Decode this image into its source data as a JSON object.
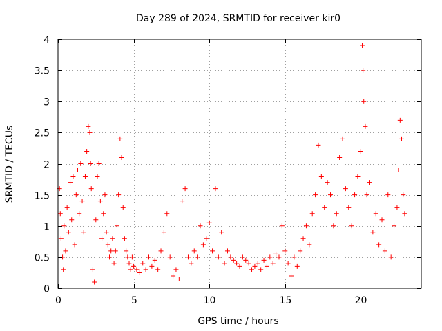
{
  "chart_data": {
    "type": "scatter",
    "title": "Day 289 of 2024, SRMTID for receiver kir0",
    "xlabel": "GPS time / hours",
    "ylabel": "SRMTID / TECUs",
    "xlim": [
      0,
      24
    ],
    "ylim": [
      0,
      4
    ],
    "xticks": [
      0,
      5,
      10,
      15,
      20
    ],
    "xtick_labels": [
      "0",
      "5",
      "10",
      "15",
      "20"
    ],
    "yticks": [
      0,
      0.5,
      1,
      1.5,
      2,
      2.5,
      3,
      3.5,
      4
    ],
    "ytick_labels": [
      "0",
      "0.5",
      "1",
      "1.5",
      "2",
      "2.5",
      "3",
      "3.5",
      "4"
    ],
    "grid": true,
    "marker": "+",
    "series": [
      {
        "name": "SRMTID",
        "color": "#ff0000",
        "x": [
          0.0,
          0.1,
          0.15,
          0.2,
          0.3,
          0.35,
          0.4,
          0.5,
          0.6,
          0.7,
          0.8,
          0.9,
          1.0,
          1.1,
          1.2,
          1.3,
          1.4,
          1.5,
          1.6,
          1.7,
          1.8,
          1.9,
          2.0,
          2.1,
          2.15,
          2.2,
          2.3,
          2.4,
          2.5,
          2.6,
          2.7,
          2.8,
          2.9,
          3.0,
          3.1,
          3.2,
          3.3,
          3.4,
          3.5,
          3.6,
          3.7,
          3.8,
          3.9,
          4.0,
          4.1,
          4.2,
          4.3,
          4.4,
          4.5,
          4.6,
          4.7,
          4.8,
          4.9,
          5.0,
          5.2,
          5.4,
          5.6,
          5.8,
          6.0,
          6.2,
          6.4,
          6.6,
          6.8,
          7.0,
          7.2,
          7.4,
          7.6,
          7.8,
          8.0,
          8.2,
          8.4,
          8.6,
          8.8,
          9.0,
          9.2,
          9.4,
          9.6,
          9.8,
          10.0,
          10.2,
          10.4,
          10.6,
          10.8,
          11.0,
          11.2,
          11.4,
          11.6,
          11.8,
          12.0,
          12.2,
          12.4,
          12.6,
          12.8,
          13.0,
          13.2,
          13.4,
          13.6,
          13.8,
          14.0,
          14.2,
          14.4,
          14.6,
          14.8,
          15.0,
          15.2,
          15.4,
          15.6,
          15.8,
          16.0,
          16.2,
          16.4,
          16.6,
          16.8,
          17.0,
          17.2,
          17.4,
          17.6,
          17.8,
          18.0,
          18.2,
          18.4,
          18.6,
          18.8,
          19.0,
          19.2,
          19.4,
          19.6,
          19.8,
          20.0,
          20.1,
          20.15,
          20.2,
          20.3,
          20.4,
          20.6,
          20.8,
          21.0,
          21.2,
          21.4,
          21.6,
          21.8,
          22.0,
          22.2,
          22.4,
          22.5,
          22.6,
          22.7,
          22.8,
          22.9
        ],
        "y": [
          1.9,
          1.6,
          1.2,
          0.8,
          0.5,
          0.3,
          1.0,
          0.6,
          1.3,
          0.9,
          1.7,
          1.1,
          1.8,
          0.7,
          1.5,
          1.9,
          1.2,
          2.0,
          1.4,
          0.9,
          1.8,
          2.2,
          2.6,
          2.5,
          2.0,
          1.6,
          0.3,
          0.1,
          1.1,
          1.8,
          2.0,
          1.4,
          0.8,
          1.2,
          1.5,
          0.9,
          0.7,
          0.5,
          0.6,
          0.8,
          0.4,
          0.6,
          1.0,
          1.5,
          2.4,
          2.1,
          1.3,
          0.8,
          0.6,
          0.5,
          0.4,
          0.3,
          0.5,
          0.35,
          0.3,
          0.25,
          0.4,
          0.3,
          0.5,
          0.35,
          0.45,
          0.3,
          0.6,
          0.9,
          1.2,
          0.5,
          0.2,
          0.3,
          0.15,
          1.4,
          1.6,
          0.5,
          0.4,
          0.6,
          0.5,
          1.0,
          0.7,
          0.8,
          1.05,
          0.6,
          1.6,
          0.5,
          0.9,
          0.4,
          0.6,
          0.5,
          0.45,
          0.4,
          0.35,
          0.5,
          0.45,
          0.4,
          0.3,
          0.35,
          0.4,
          0.3,
          0.45,
          0.35,
          0.5,
          0.4,
          0.55,
          0.5,
          1.0,
          0.6,
          0.4,
          0.2,
          0.5,
          0.35,
          0.6,
          0.8,
          1.0,
          0.7,
          1.2,
          1.5,
          2.3,
          1.8,
          1.3,
          1.7,
          1.5,
          1.0,
          1.2,
          2.1,
          2.4,
          1.6,
          1.3,
          1.0,
          1.5,
          1.8,
          2.2,
          3.9,
          3.5,
          3.0,
          2.6,
          1.5,
          1.7,
          0.9,
          1.2,
          0.7,
          1.1,
          0.6,
          1.5,
          0.5,
          1.0,
          1.3,
          1.9,
          2.7,
          2.4,
          1.5,
          1.2
        ]
      }
    ]
  }
}
